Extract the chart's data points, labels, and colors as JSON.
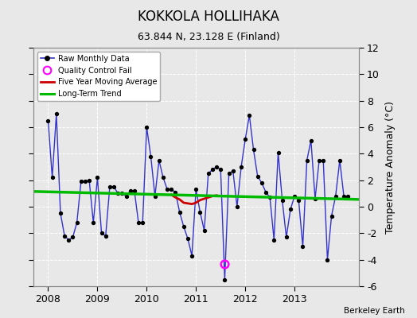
{
  "title": "KOKKOLA HOLLIHAKA",
  "subtitle": "63.844 N, 23.128 E (Finland)",
  "ylabel": "Temperature Anomaly (°C)",
  "credit": "Berkeley Earth",
  "ylim": [
    -6,
    12
  ],
  "yticks": [
    -6,
    -4,
    -2,
    0,
    2,
    4,
    6,
    8,
    10,
    12
  ],
  "xlim_start": 2007.7,
  "xlim_end": 2014.3,
  "background_color": "#e8e8e8",
  "plot_bg_color": "#e8e8e8",
  "raw_color": "#3333cc",
  "raw_marker_color": "#000000",
  "ma_color": "#cc0000",
  "trend_color": "#00bb00",
  "qc_color": "#ff00ff",
  "raw_data": [
    [
      2008.0,
      6.5
    ],
    [
      2008.083,
      2.2
    ],
    [
      2008.167,
      7.0
    ],
    [
      2008.25,
      -0.5
    ],
    [
      2008.333,
      -2.2
    ],
    [
      2008.417,
      -2.5
    ],
    [
      2008.5,
      -2.3
    ],
    [
      2008.583,
      -1.2
    ],
    [
      2008.667,
      1.9
    ],
    [
      2008.75,
      1.9
    ],
    [
      2008.833,
      2.0
    ],
    [
      2008.917,
      -1.2
    ],
    [
      2009.0,
      2.2
    ],
    [
      2009.083,
      -2.0
    ],
    [
      2009.167,
      -2.2
    ],
    [
      2009.25,
      1.5
    ],
    [
      2009.333,
      1.5
    ],
    [
      2009.417,
      1.0
    ],
    [
      2009.5,
      1.0
    ],
    [
      2009.583,
      0.8
    ],
    [
      2009.667,
      1.2
    ],
    [
      2009.75,
      1.2
    ],
    [
      2009.833,
      -1.2
    ],
    [
      2009.917,
      -1.2
    ],
    [
      2010.0,
      6.0
    ],
    [
      2010.083,
      3.8
    ],
    [
      2010.167,
      0.8
    ],
    [
      2010.25,
      3.5
    ],
    [
      2010.333,
      2.2
    ],
    [
      2010.417,
      1.3
    ],
    [
      2010.5,
      1.3
    ],
    [
      2010.583,
      1.1
    ],
    [
      2010.667,
      -0.4
    ],
    [
      2010.75,
      -1.5
    ],
    [
      2010.833,
      -2.4
    ],
    [
      2010.917,
      -3.7
    ],
    [
      2011.0,
      1.3
    ],
    [
      2011.083,
      -0.4
    ],
    [
      2011.167,
      -1.8
    ],
    [
      2011.25,
      2.5
    ],
    [
      2011.333,
      2.8
    ],
    [
      2011.417,
      3.0
    ],
    [
      2011.5,
      2.8
    ],
    [
      2011.583,
      -5.5
    ],
    [
      2011.667,
      2.5
    ],
    [
      2011.75,
      2.7
    ],
    [
      2011.833,
      0.0
    ],
    [
      2011.917,
      3.0
    ],
    [
      2012.0,
      5.1
    ],
    [
      2012.083,
      6.9
    ],
    [
      2012.167,
      4.3
    ],
    [
      2012.25,
      2.3
    ],
    [
      2012.333,
      1.8
    ],
    [
      2012.417,
      1.1
    ],
    [
      2012.5,
      0.7
    ],
    [
      2012.583,
      -2.5
    ],
    [
      2012.667,
      4.1
    ],
    [
      2012.75,
      0.5
    ],
    [
      2012.833,
      -2.3
    ],
    [
      2012.917,
      -0.2
    ],
    [
      2013.0,
      0.8
    ],
    [
      2013.083,
      0.5
    ],
    [
      2013.167,
      -3.0
    ],
    [
      2013.25,
      3.5
    ],
    [
      2013.333,
      5.0
    ],
    [
      2013.417,
      0.6
    ],
    [
      2013.5,
      3.5
    ],
    [
      2013.583,
      3.5
    ],
    [
      2013.667,
      -4.0
    ],
    [
      2013.75,
      -0.7
    ],
    [
      2013.833,
      0.8
    ],
    [
      2013.917,
      3.5
    ],
    [
      2014.0,
      0.8
    ],
    [
      2014.083,
      0.8
    ]
  ],
  "ma_data": [
    [
      2010.5,
      0.9
    ],
    [
      2010.583,
      0.7
    ],
    [
      2010.667,
      0.55
    ],
    [
      2010.75,
      0.3
    ],
    [
      2010.833,
      0.25
    ],
    [
      2010.917,
      0.2
    ],
    [
      2011.0,
      0.3
    ],
    [
      2011.083,
      0.5
    ],
    [
      2011.167,
      0.6
    ],
    [
      2011.25,
      0.7
    ],
    [
      2011.333,
      0.8
    ],
    [
      2011.417,
      0.85
    ]
  ],
  "trend_data": [
    [
      2007.7,
      1.15
    ],
    [
      2014.3,
      0.55
    ]
  ],
  "qc_fail": [
    [
      2011.583,
      -4.3
    ]
  ],
  "xticks": [
    2008,
    2009,
    2010,
    2011,
    2012,
    2013
  ]
}
